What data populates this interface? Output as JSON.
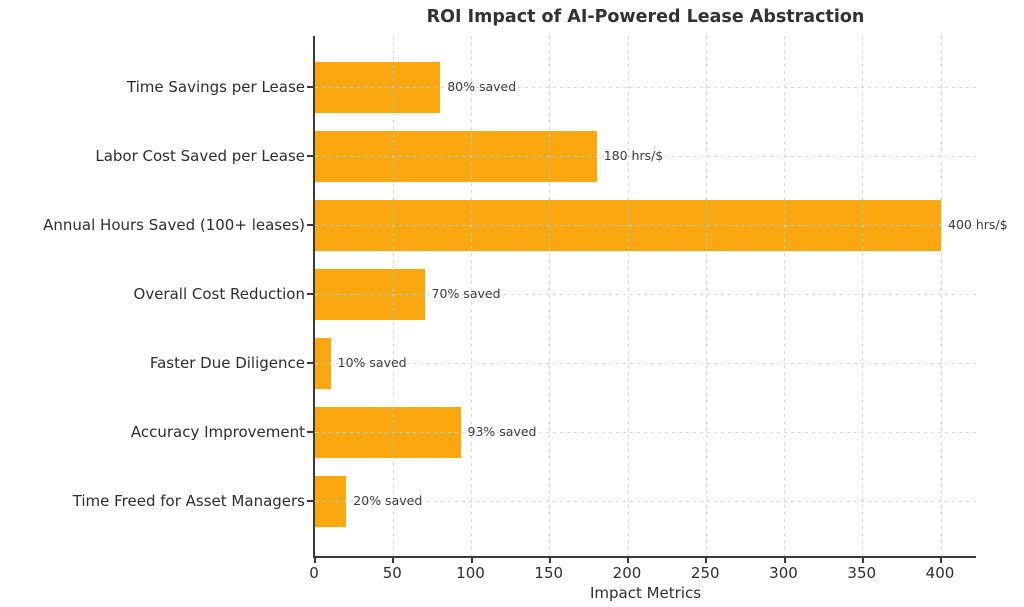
{
  "chart_data": {
    "type": "bar",
    "orientation": "horizontal",
    "title": "ROI Impact of AI-Powered Lease Abstraction",
    "xlabel": "Impact Metrics",
    "ylabel": "",
    "categories": [
      "Time Savings per Lease",
      "Labor Cost Saved per Lease",
      "Annual Hours Saved (100+ leases)",
      "Overall Cost Reduction",
      "Faster Due Diligence",
      "Accuracy Improvement",
      "Time Freed for Asset Managers"
    ],
    "values": [
      80,
      180,
      400,
      70,
      10,
      93,
      20
    ],
    "annotations": [
      "80% saved",
      "180 hrs/$",
      "400 hrs/$",
      "70% saved",
      "10% saved",
      "93% saved",
      "20% saved"
    ],
    "x_ticks": [
      0,
      50,
      100,
      150,
      200,
      250,
      300,
      350,
      400
    ],
    "xlim": [
      0,
      422
    ],
    "grid": true,
    "grid_style": "dashed",
    "legend": "none",
    "bar_color": "#FBA710",
    "grid_color": "#d9d9d9",
    "spine_color": "#3a3a3a",
    "text_color": "#2e2e2e",
    "annotation_color": "#3c3c3c"
  }
}
